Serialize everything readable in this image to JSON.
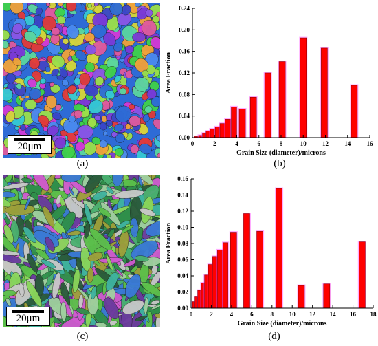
{
  "panels": {
    "a": {
      "label": "(a)",
      "scale_text": "20μm"
    },
    "b": {
      "label": "(b)"
    },
    "c": {
      "label": "(c)",
      "scale_text": "20μm"
    },
    "d": {
      "label": "(d)"
    }
  },
  "colors": {
    "bar_fill": "#ff0000",
    "bar_glow": "#ff44ff",
    "axis": "#000000"
  },
  "chart_data": [
    {
      "type": "bar",
      "panel": "b",
      "xlabel": "Grain Size (diameter)/microns",
      "ylabel": "Area Fraction",
      "xlim": [
        0,
        16
      ],
      "ylim": [
        0,
        0.24
      ],
      "xticks": [
        0,
        2,
        4,
        6,
        8,
        10,
        12,
        14,
        16
      ],
      "yticks": [
        0.0,
        0.04,
        0.08,
        0.12,
        0.16,
        0.2,
        0.24
      ],
      "xtick_labels": [
        "0",
        "2",
        "4",
        "6",
        "8",
        "10",
        "12",
        "14",
        "16"
      ],
      "ytick_labels": [
        "0.00",
        "0.04",
        "0.08",
        "0.12",
        "0.16",
        "0.20",
        "0.24"
      ],
      "bars": [
        {
          "x": 0.35,
          "value": 0.002
        },
        {
          "x": 0.7,
          "value": 0.004
        },
        {
          "x": 1.05,
          "value": 0.008
        },
        {
          "x": 1.4,
          "value": 0.012
        },
        {
          "x": 1.8,
          "value": 0.016
        },
        {
          "x": 2.25,
          "value": 0.02
        },
        {
          "x": 2.7,
          "value": 0.026
        },
        {
          "x": 3.2,
          "value": 0.034
        },
        {
          "x": 3.75,
          "value": 0.057
        },
        {
          "x": 4.5,
          "value": 0.053
        },
        {
          "x": 5.5,
          "value": 0.075
        },
        {
          "x": 6.8,
          "value": 0.12
        },
        {
          "x": 8.1,
          "value": 0.141
        },
        {
          "x": 10.0,
          "value": 0.185
        },
        {
          "x": 11.9,
          "value": 0.166
        },
        {
          "x": 14.6,
          "value": 0.097
        }
      ]
    },
    {
      "type": "bar",
      "panel": "d",
      "xlabel": "Grain Size (diameter)/microns",
      "ylabel": "Area Fraction",
      "xlim": [
        0,
        18
      ],
      "ylim": [
        0,
        0.16
      ],
      "xticks": [
        0,
        2,
        4,
        6,
        8,
        10,
        12,
        14,
        16,
        18
      ],
      "yticks": [
        0.0,
        0.02,
        0.04,
        0.06,
        0.08,
        0.1,
        0.12,
        0.14,
        0.16
      ],
      "xtick_labels": [
        "0",
        "2",
        "4",
        "6",
        "8",
        "10",
        "12",
        "14",
        "16",
        "18"
      ],
      "ytick_labels": [
        "0.00",
        "0.02",
        "0.04",
        "0.06",
        "0.08",
        "0.10",
        "0.12",
        "0.14",
        "0.16"
      ],
      "bars": [
        {
          "x": 0.25,
          "value": 0.008
        },
        {
          "x": 0.5,
          "value": 0.014
        },
        {
          "x": 0.8,
          "value": 0.022
        },
        {
          "x": 1.15,
          "value": 0.031
        },
        {
          "x": 1.5,
          "value": 0.041
        },
        {
          "x": 1.9,
          "value": 0.054
        },
        {
          "x": 2.35,
          "value": 0.064
        },
        {
          "x": 2.85,
          "value": 0.072
        },
        {
          "x": 3.4,
          "value": 0.081
        },
        {
          "x": 4.2,
          "value": 0.094
        },
        {
          "x": 5.5,
          "value": 0.117
        },
        {
          "x": 6.8,
          "value": 0.095
        },
        {
          "x": 8.7,
          "value": 0.148
        },
        {
          "x": 10.9,
          "value": 0.028
        },
        {
          "x": 13.4,
          "value": 0.03
        },
        {
          "x": 16.9,
          "value": 0.082
        }
      ]
    }
  ]
}
